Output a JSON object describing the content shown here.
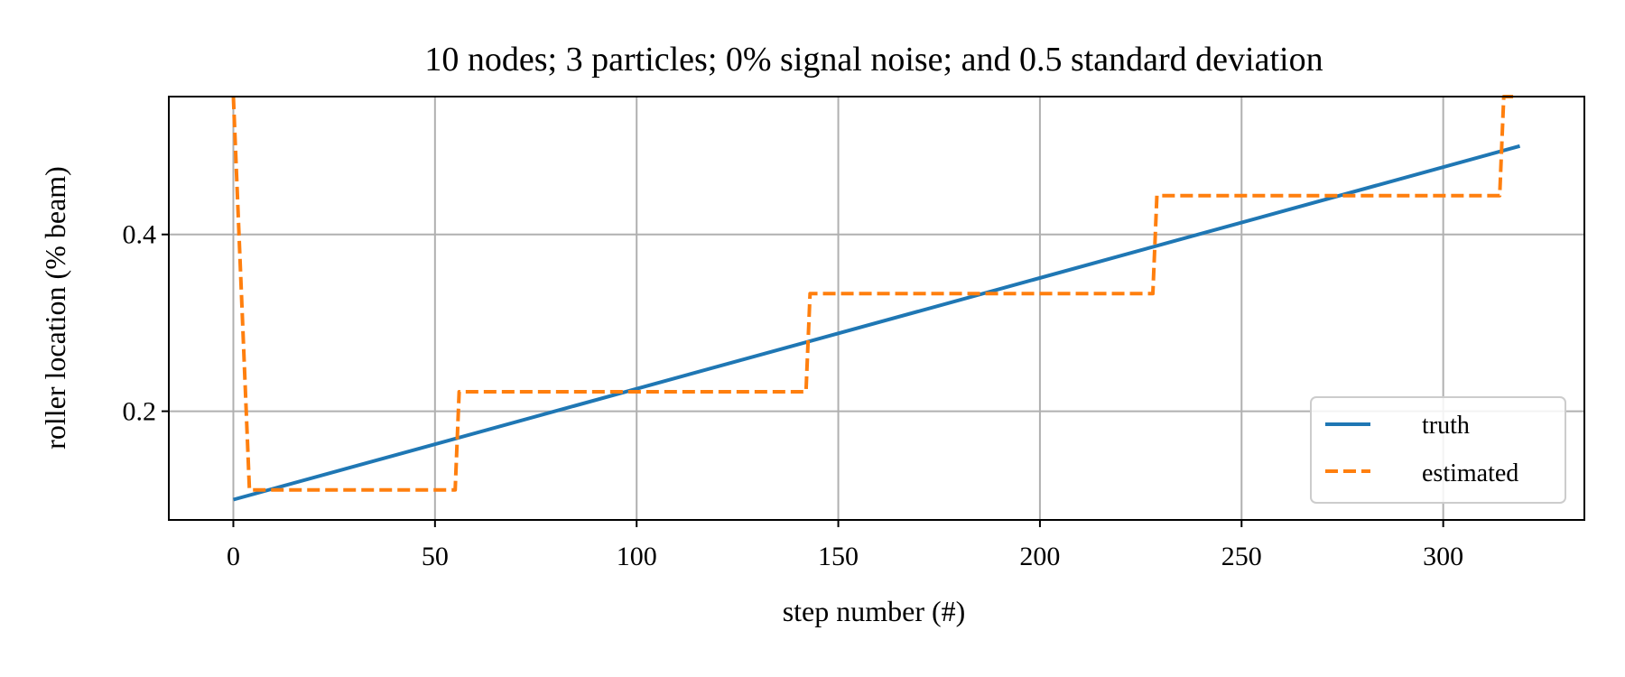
{
  "chart_data": {
    "type": "line",
    "title": "10 nodes; 3 particles; 0% signal noise; and 0.5 standard deviation",
    "xlabel": "step number (#)",
    "ylabel": "roller location (% beam)",
    "xlim": [
      -16,
      335
    ],
    "ylim": [
      0.077,
      0.556
    ],
    "xticks": [
      0,
      50,
      100,
      150,
      200,
      250,
      300
    ],
    "xtick_labels": [
      "0",
      "50",
      "100",
      "150",
      "200",
      "250",
      "300"
    ],
    "yticks": [
      0.2,
      0.4
    ],
    "ytick_labels": [
      "0.2",
      "0.4"
    ],
    "grid": true,
    "legend_position": "lower-right",
    "series": [
      {
        "name": "truth",
        "color": "#1f77b4",
        "style": "solid",
        "x": [
          0,
          319
        ],
        "y": [
          0.1,
          0.5
        ]
      },
      {
        "name": "estimated",
        "color": "#ff7f0e",
        "style": "dashed",
        "x": [
          0,
          4,
          55,
          56,
          142,
          143,
          228,
          229,
          314,
          315,
          318
        ],
        "y": [
          0.556,
          0.111,
          0.111,
          0.222,
          0.222,
          0.333,
          0.333,
          0.444,
          0.444,
          0.556,
          0.556
        ]
      }
    ]
  }
}
